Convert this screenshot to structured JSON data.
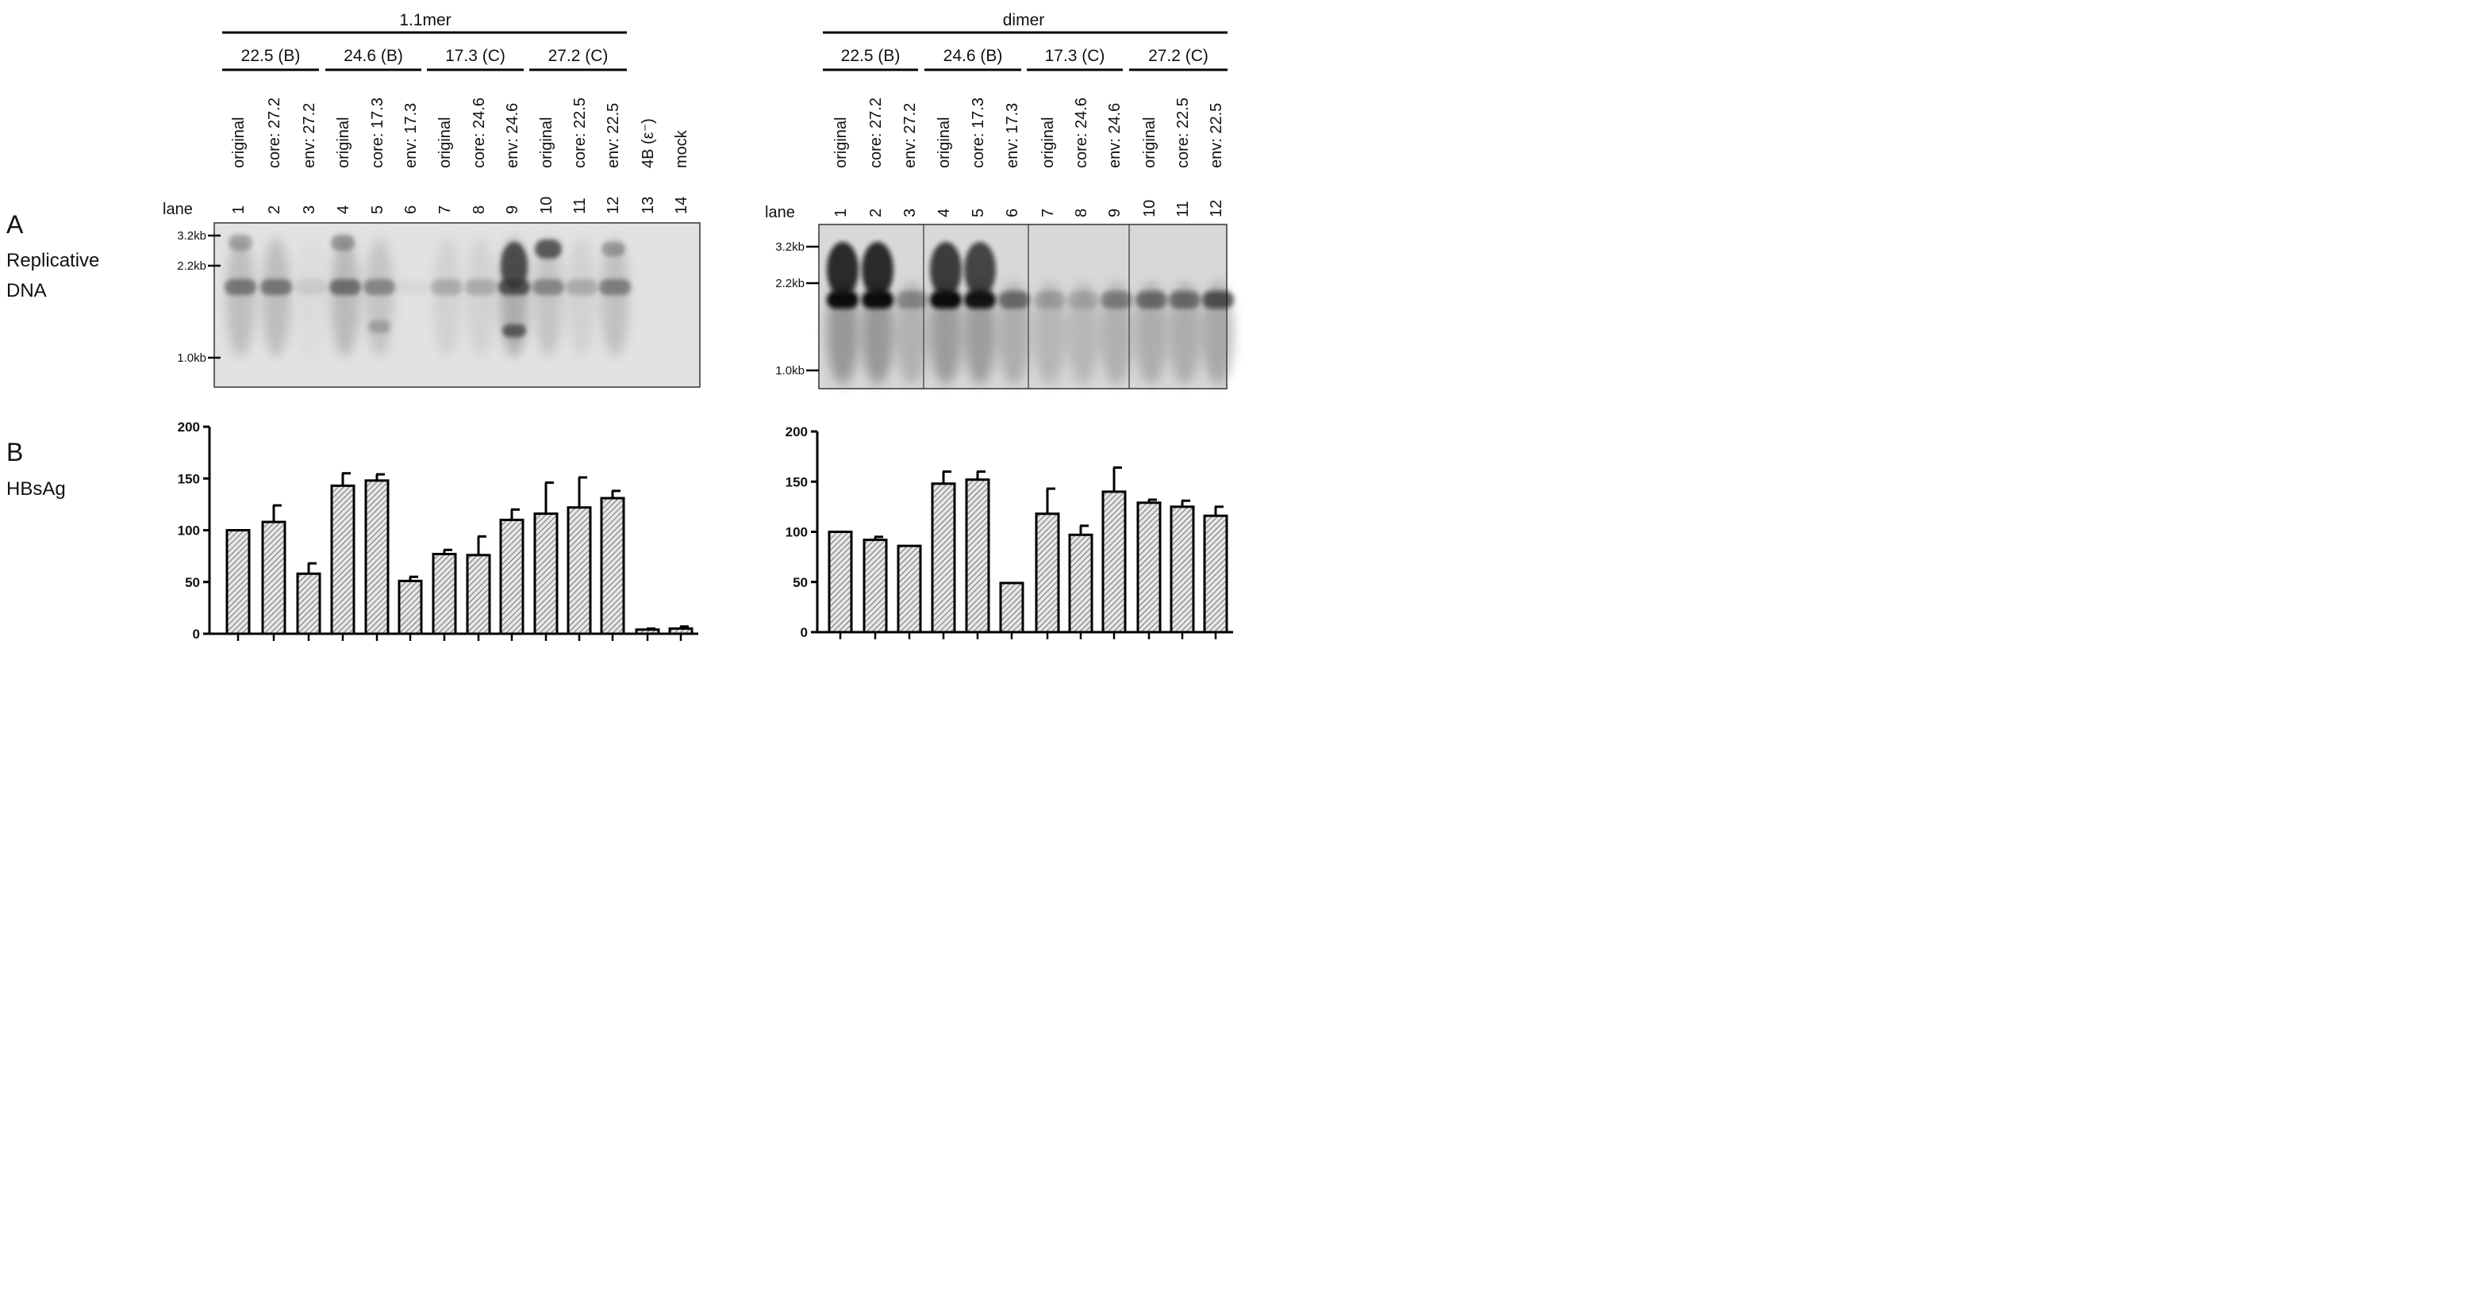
{
  "panel_labels": {
    "a": "A",
    "a_line1": "Replicative",
    "a_line2": "DNA",
    "b": "B",
    "b_line1": "HBsAg"
  },
  "left": {
    "header": "1.1mer",
    "groups": [
      "22.5 (B)",
      "24.6 (B)",
      "17.3 (C)",
      "27.2 (C)"
    ],
    "samples": [
      "original",
      "core: 27.2",
      "env: 27.2",
      "original",
      "core: 17.3",
      "env: 17.3",
      "original",
      "core: 24.6",
      "env: 24.6",
      "original",
      "core: 22.5",
      "env: 22.5",
      "4B (ε⁻)",
      "mock"
    ],
    "lane_word": "lane",
    "lanes": [
      "1",
      "2",
      "3",
      "4",
      "5",
      "6",
      "7",
      "8",
      "9",
      "10",
      "11",
      "12",
      "13",
      "14"
    ],
    "markers": [
      {
        "label": "3.2kb"
      },
      {
        "label": "2.2kb"
      },
      {
        "label": "1.0kb"
      }
    ]
  },
  "right": {
    "header": "dimer",
    "groups": [
      "22.5 (B)",
      "24.6 (B)",
      "17.3 (C)",
      "27.2 (C)"
    ],
    "samples": [
      "original",
      "core: 27.2",
      "env: 27.2",
      "original",
      "core: 17.3",
      "env: 17.3",
      "original",
      "core: 24.6",
      "env: 24.6",
      "original",
      "core: 22.5",
      "env: 22.5"
    ],
    "lane_word": "lane",
    "lanes": [
      "1",
      "2",
      "3",
      "4",
      "5",
      "6",
      "7",
      "8",
      "9",
      "10",
      "11",
      "12"
    ],
    "markers": [
      {
        "label": "3.2kb"
      },
      {
        "label": "2.2kb"
      },
      {
        "label": "1.0kb"
      }
    ]
  },
  "chart_data": [
    {
      "type": "bar",
      "ylim": [
        0,
        200
      ],
      "yticks": [
        0,
        50,
        100,
        150,
        200
      ],
      "categories": [
        "1",
        "2",
        "3",
        "4",
        "5",
        "6",
        "7",
        "8",
        "9",
        "10",
        "11",
        "12",
        "13",
        "14"
      ],
      "values": [
        100,
        108,
        58,
        143,
        148,
        51,
        77,
        76,
        110,
        116,
        122,
        131,
        4,
        5
      ],
      "errors": [
        0,
        16,
        10,
        12,
        6,
        4,
        4,
        18,
        10,
        30,
        29,
        7,
        1,
        2
      ],
      "fill_color": "#d9d9d9"
    },
    {
      "type": "bar",
      "ylim": [
        0,
        200
      ],
      "yticks": [
        0,
        50,
        100,
        150,
        200
      ],
      "categories": [
        "1",
        "2",
        "3",
        "4",
        "5",
        "6",
        "7",
        "8",
        "9",
        "10",
        "11",
        "12"
      ],
      "values": [
        100,
        92,
        86,
        148,
        152,
        49,
        118,
        97,
        140,
        129,
        125,
        116
      ],
      "errors": [
        0,
        3,
        0,
        12,
        8,
        0,
        25,
        9,
        24,
        3,
        6,
        9
      ],
      "fill_color": "#d9d9d9"
    }
  ]
}
